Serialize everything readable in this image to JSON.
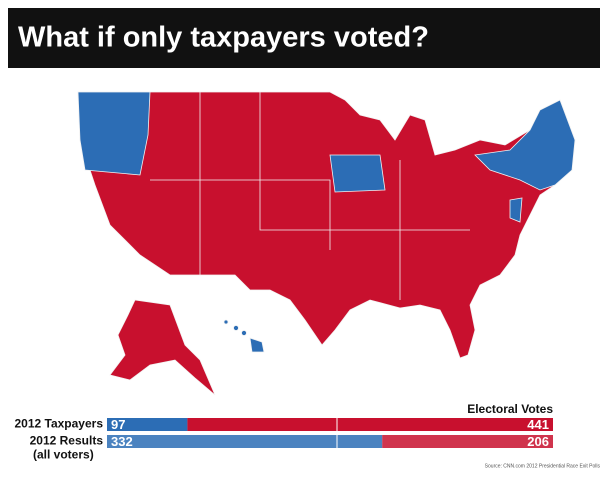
{
  "header": {
    "title": "What if only taxpayers voted?"
  },
  "chart_data": {
    "type": "bar",
    "stacked": true,
    "orientation": "horizontal",
    "title": "Electoral Votes",
    "categories": [
      "2012 Taxpayers",
      "2012 Results"
    ],
    "category_sublabels": [
      null,
      "(all voters)"
    ],
    "series": [
      {
        "color": "#2c6db5",
        "values": [
          97,
          332
        ]
      },
      {
        "color": "#c8102e",
        "values": [
          441,
          206
        ]
      }
    ],
    "xlim": [
      0,
      538
    ],
    "source": "Source: CNN.com 2012 Presidential Race Exit Polls"
  }
}
